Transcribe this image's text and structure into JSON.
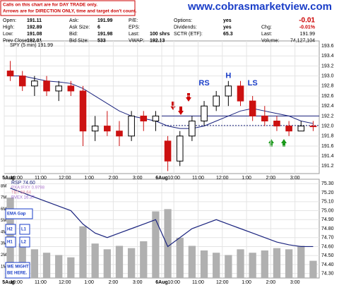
{
  "header": {
    "notes": [
      "Calls on this chart are for DAY TRADE only.",
      "Arrows are for DIRECTION ONLY, time and target don't count."
    ],
    "site": "www.cobrasmarketview.com",
    "quote": [
      [
        [
          "Open:",
          "191.11"
        ],
        [
          "High:",
          "192.89"
        ],
        [
          "Low:",
          "191.08"
        ],
        [
          "Prev Close:",
          "192.01"
        ]
      ],
      [
        [
          "Ask:",
          "191.99"
        ],
        [
          "Ask Size:",
          "6"
        ],
        [
          "Bid:",
          "191.98"
        ],
        [
          "Bid Size:",
          "533"
        ]
      ],
      [
        [
          "P/E:"
        ],
        [
          "EPS:"
        ],
        [
          "Last:",
          "100 shrs"
        ],
        [
          "VWAP:",
          "192.13"
        ]
      ],
      [
        [
          "Options:",
          "yes"
        ],
        [
          "Dividends:",
          "yes"
        ],
        [
          "SCTR (ETF):",
          "65.3"
        ]
      ],
      [
        [
          "",
          "-0.01"
        ],
        [
          "Chg:",
          "-0.01%"
        ],
        [
          "Last:",
          "191.99"
        ],
        [
          "Volume:",
          "74,127,104"
        ]
      ]
    ]
  },
  "chart_data": [
    {
      "type": "candlestick",
      "title": "SPY (5 min) 191.99",
      "open": [
        193.1,
        193.0,
        192.8,
        192.9,
        192.7,
        192.8,
        192.7,
        191.9,
        192.0,
        191.9,
        191.8,
        192.2,
        192.1,
        191.7,
        191.3,
        191.8,
        192.1,
        192.4,
        192.6,
        192.8,
        192.5,
        192.2,
        192.1,
        192.0,
        191.9,
        192.0
      ],
      "high": [
        193.3,
        193.1,
        193.0,
        193.0,
        192.9,
        192.9,
        192.8,
        192.2,
        192.3,
        192.1,
        192.3,
        192.3,
        192.3,
        191.8,
        191.9,
        192.2,
        192.5,
        192.7,
        192.9,
        192.9,
        192.6,
        192.4,
        192.2,
        192.1,
        192.1,
        192.1
      ],
      "low": [
        192.9,
        192.7,
        192.6,
        192.6,
        192.5,
        192.6,
        191.6,
        191.7,
        191.8,
        191.6,
        191.7,
        191.9,
        191.9,
        191.1,
        191.2,
        191.7,
        192.0,
        192.3,
        192.4,
        192.4,
        192.1,
        192.0,
        191.9,
        191.8,
        191.9,
        191.9
      ],
      "close": [
        193.0,
        192.8,
        192.9,
        192.7,
        192.8,
        192.7,
        191.9,
        192.0,
        191.9,
        191.8,
        192.2,
        192.1,
        192.2,
        191.3,
        191.8,
        192.1,
        192.4,
        192.6,
        192.8,
        192.5,
        192.2,
        192.1,
        192.0,
        191.9,
        192.0,
        191.99
      ],
      "ma": [
        193.0,
        193.0,
        192.95,
        192.9,
        192.88,
        192.85,
        192.75,
        192.6,
        192.45,
        192.3,
        192.2,
        192.15,
        192.1,
        192.0,
        191.95,
        191.95,
        192.0,
        192.1,
        192.2,
        192.3,
        192.35,
        192.3,
        192.25,
        192.2,
        192.1,
        192.05
      ],
      "up_color": "#000000",
      "down_color": "#cc1111",
      "ma_color": "#1a237e",
      "reference_lines": [
        192.2,
        192.01
      ],
      "annotations": [
        {
          "text": "RS",
          "x": 16,
          "y": 192.85
        },
        {
          "text": "H",
          "x": 18,
          "y": 193.0
        },
        {
          "text": "LS",
          "x": 20,
          "y": 192.85
        }
      ],
      "xlim": [
        0,
        26
      ],
      "ylim": [
        191.05,
        193.7
      ],
      "yticks": [
        191.2,
        191.4,
        191.6,
        191.8,
        {
          "value": 192,
          "label": "192.0"
        },
        192.2,
        192.4,
        192.6,
        192.8,
        {
          "value": 193,
          "label": "193.0"
        },
        193.2,
        193.4,
        193.6
      ],
      "xticks": [
        {
          "value": 0,
          "label": "5Aug"
        },
        {
          "value": 1,
          "label": "10:00"
        },
        {
          "value": 3,
          "label": "11:00"
        },
        {
          "value": 5,
          "label": "12:00"
        },
        {
          "value": 7,
          "label": "1:00"
        },
        {
          "value": 9,
          "label": "2:00"
        },
        {
          "value": 11,
          "label": "3:00"
        },
        {
          "value": 13,
          "label": "6Aug"
        },
        {
          "value": 14,
          "label": "10:00"
        },
        {
          "value": 16,
          "label": "11:00"
        },
        {
          "value": 18,
          "label": "12:00"
        },
        {
          "value": 20,
          "label": "1:00"
        },
        {
          "value": 22,
          "label": "2:00"
        },
        {
          "value": 24,
          "label": "3:00"
        }
      ],
      "grid": true
    },
    {
      "type": "bar-line",
      "volume": [
        7.0,
        3.0,
        2.5,
        2.2,
        2.0,
        1.8,
        4.5,
        3.0,
        2.5,
        2.8,
        2.6,
        3.2,
        5.8,
        6.0,
        3.5,
        2.8,
        2.4,
        2.2,
        2.0,
        2.5,
        2.2,
        2.4,
        2.6,
        2.5,
        2.8,
        1.5
      ],
      "volume_color": "#b0b0b0",
      "vlim": [
        0,
        8.6
      ],
      "vticks": [
        {
          "value": 1,
          "label": "1M"
        },
        {
          "value": 2,
          "label": "2M"
        },
        {
          "value": 3,
          "label": "3M"
        },
        {
          "value": 4,
          "label": "4M"
        },
        {
          "value": 5,
          "label": "5M"
        },
        {
          "value": 6,
          "label": "6M"
        },
        {
          "value": 7,
          "label": "7M"
        },
        {
          "value": 8,
          "label": "8M"
        }
      ],
      "series": [
        {
          "name": "RSP 74.60",
          "color": "#1a237e",
          "values": [
            75.25,
            75.2,
            75.15,
            75.1,
            75.05,
            75.0,
            74.85,
            74.75,
            74.7,
            74.75,
            74.8,
            74.85,
            74.9,
            74.6,
            74.7,
            74.8,
            74.85,
            74.9,
            74.85,
            74.8,
            74.75,
            74.7,
            74.65,
            74.62,
            74.6,
            74.6
          ]
        }
      ],
      "other_legend": [
        {
          "name": "PXA:IFXY 0.9798",
          "color": "#b07ad0"
        },
        {
          "name": "TBT 58.64",
          "color": "#e08aa0"
        },
        {
          "name": "BVEX 16.37",
          "color": "#9a6ad0"
        }
      ],
      "notes": [
        "EMA Gap",
        "H2",
        "L1",
        "H1",
        "L2",
        "WE MIGHT BE HERE."
      ],
      "xlim": [
        0,
        26
      ],
      "ylim": [
        74.25,
        75.35
      ],
      "yticks": [
        {
          "value": 74.3,
          "label": "74.30"
        },
        {
          "value": 74.4,
          "label": "74.40"
        },
        {
          "value": 74.5,
          "label": "74.50"
        },
        {
          "value": 74.6,
          "label": "74.60"
        },
        {
          "value": 74.7,
          "label": "74.70"
        },
        {
          "value": 74.8,
          "label": "74.80"
        },
        {
          "value": 74.9,
          "label": "74.90"
        },
        {
          "value": 75,
          "label": "75.00"
        },
        {
          "value": 75.1,
          "label": "75.10"
        },
        {
          "value": 75.2,
          "label": "75.20"
        },
        {
          "value": 75.3,
          "label": "75.30"
        }
      ],
      "xticks": [
        {
          "value": 0,
          "label": "5Aug"
        },
        {
          "value": 1,
          "label": "10:00"
        },
        {
          "value": 3,
          "label": "11:00"
        },
        {
          "value": 5,
          "label": "12:00"
        },
        {
          "value": 7,
          "label": "1:00"
        },
        {
          "value": 9,
          "label": "2:00"
        },
        {
          "value": 11,
          "label": "3:00"
        },
        {
          "value": 13,
          "label": "6Aug"
        },
        {
          "value": 14,
          "label": "10:00"
        },
        {
          "value": 16,
          "label": "11:00"
        },
        {
          "value": 18,
          "label": "12:00"
        },
        {
          "value": 20,
          "label": "1:00"
        },
        {
          "value": 22,
          "label": "2:00"
        },
        {
          "value": 24,
          "label": "3:00"
        }
      ]
    }
  ]
}
